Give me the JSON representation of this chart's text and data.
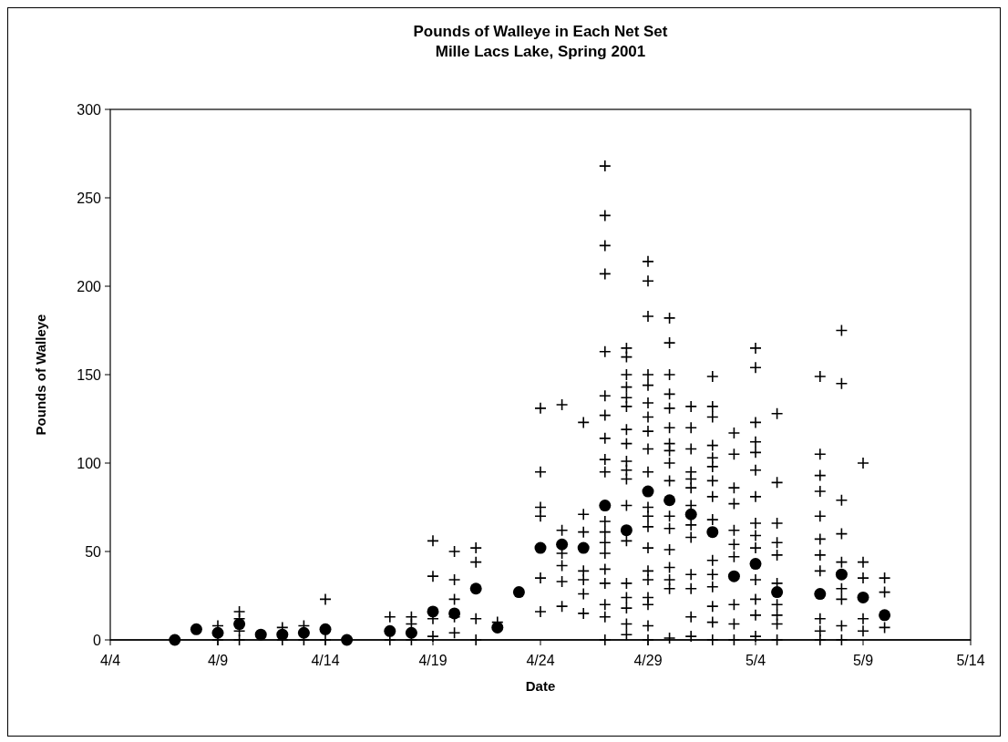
{
  "chart_data": {
    "type": "scatter",
    "title": "Pounds of Walleye in Each Net Set",
    "subtitle": "Mille Lacs Lake, Spring 2001",
    "xlabel": "Date",
    "ylabel": "Pounds of Walleye",
    "xlim": [
      "2001-04-04",
      "2001-05-14"
    ],
    "xticks": [
      {
        "value": "2001-04-04",
        "label": "4/4"
      },
      {
        "value": "2001-04-09",
        "label": "4/9"
      },
      {
        "value": "2001-04-14",
        "label": "4/14"
      },
      {
        "value": "2001-04-19",
        "label": "4/19"
      },
      {
        "value": "2001-04-24",
        "label": "4/24"
      },
      {
        "value": "2001-04-29",
        "label": "4/29"
      },
      {
        "value": "2001-05-04",
        "label": "5/4"
      },
      {
        "value": "2001-05-09",
        "label": "5/9"
      },
      {
        "value": "2001-05-14",
        "label": "5/14"
      }
    ],
    "ylim": [
      0,
      300
    ],
    "yticks": [
      0,
      50,
      100,
      150,
      200,
      250,
      300
    ],
    "grid": false,
    "series": [
      {
        "color": "#000000",
        "marker": "cross",
        "x": [
          "2001-04-09",
          "2001-04-09",
          "2001-04-10",
          "2001-04-10",
          "2001-04-10",
          "2001-04-10",
          "2001-04-12",
          "2001-04-12",
          "2001-04-13",
          "2001-04-13",
          "2001-04-14",
          "2001-04-14",
          "2001-04-17",
          "2001-04-17",
          "2001-04-18",
          "2001-04-18",
          "2001-04-18",
          "2001-04-19",
          "2001-04-19",
          "2001-04-19",
          "2001-04-19",
          "2001-04-20",
          "2001-04-20",
          "2001-04-20",
          "2001-04-20",
          "2001-04-20",
          "2001-04-21",
          "2001-04-21",
          "2001-04-21",
          "2001-04-21",
          "2001-04-22",
          "2001-04-24",
          "2001-04-24",
          "2001-04-24",
          "2001-04-24",
          "2001-04-24",
          "2001-04-24",
          "2001-04-25",
          "2001-04-25",
          "2001-04-25",
          "2001-04-25",
          "2001-04-25",
          "2001-04-25",
          "2001-04-26",
          "2001-04-26",
          "2001-04-26",
          "2001-04-26",
          "2001-04-26",
          "2001-04-26",
          "2001-04-26",
          "2001-04-27",
          "2001-04-27",
          "2001-04-27",
          "2001-04-27",
          "2001-04-27",
          "2001-04-27",
          "2001-04-27",
          "2001-04-27",
          "2001-04-27",
          "2001-04-27",
          "2001-04-27",
          "2001-04-27",
          "2001-04-27",
          "2001-04-27",
          "2001-04-27",
          "2001-04-27",
          "2001-04-27",
          "2001-04-27",
          "2001-04-27",
          "2001-04-28",
          "2001-04-28",
          "2001-04-28",
          "2001-04-28",
          "2001-04-28",
          "2001-04-28",
          "2001-04-28",
          "2001-04-28",
          "2001-04-28",
          "2001-04-28",
          "2001-04-28",
          "2001-04-28",
          "2001-04-28",
          "2001-04-28",
          "2001-04-28",
          "2001-04-28",
          "2001-04-28",
          "2001-04-28",
          "2001-04-29",
          "2001-04-29",
          "2001-04-29",
          "2001-04-29",
          "2001-04-29",
          "2001-04-29",
          "2001-04-29",
          "2001-04-29",
          "2001-04-29",
          "2001-04-29",
          "2001-04-29",
          "2001-04-29",
          "2001-04-29",
          "2001-04-29",
          "2001-04-29",
          "2001-04-29",
          "2001-04-29",
          "2001-04-29",
          "2001-04-29",
          "2001-04-29",
          "2001-04-30",
          "2001-04-30",
          "2001-04-30",
          "2001-04-30",
          "2001-04-30",
          "2001-04-30",
          "2001-04-30",
          "2001-04-30",
          "2001-04-30",
          "2001-04-30",
          "2001-04-30",
          "2001-04-30",
          "2001-04-30",
          "2001-04-30",
          "2001-04-30",
          "2001-04-30",
          "2001-04-30",
          "2001-05-01",
          "2001-05-01",
          "2001-05-01",
          "2001-05-01",
          "2001-05-01",
          "2001-05-01",
          "2001-05-01",
          "2001-05-01",
          "2001-05-01",
          "2001-05-01",
          "2001-05-01",
          "2001-05-01",
          "2001-05-01",
          "2001-05-02",
          "2001-05-02",
          "2001-05-02",
          "2001-05-02",
          "2001-05-02",
          "2001-05-02",
          "2001-05-02",
          "2001-05-02",
          "2001-05-02",
          "2001-05-02",
          "2001-05-02",
          "2001-05-02",
          "2001-05-02",
          "2001-05-02",
          "2001-05-02",
          "2001-05-03",
          "2001-05-03",
          "2001-05-03",
          "2001-05-03",
          "2001-05-03",
          "2001-05-03",
          "2001-05-03",
          "2001-05-03",
          "2001-05-03",
          "2001-05-03",
          "2001-05-04",
          "2001-05-04",
          "2001-05-04",
          "2001-05-04",
          "2001-05-04",
          "2001-05-04",
          "2001-05-04",
          "2001-05-04",
          "2001-05-04",
          "2001-05-04",
          "2001-05-04",
          "2001-05-04",
          "2001-05-04",
          "2001-05-04",
          "2001-05-05",
          "2001-05-05",
          "2001-05-05",
          "2001-05-05",
          "2001-05-05",
          "2001-05-05",
          "2001-05-05",
          "2001-05-05",
          "2001-05-05",
          "2001-05-05",
          "2001-05-07",
          "2001-05-07",
          "2001-05-07",
          "2001-05-07",
          "2001-05-07",
          "2001-05-07",
          "2001-05-07",
          "2001-05-07",
          "2001-05-07",
          "2001-05-07",
          "2001-05-07",
          "2001-05-08",
          "2001-05-08",
          "2001-05-08",
          "2001-05-08",
          "2001-05-08",
          "2001-05-08",
          "2001-05-08",
          "2001-05-08",
          "2001-05-08",
          "2001-05-09",
          "2001-05-09",
          "2001-05-09",
          "2001-05-09",
          "2001-05-09",
          "2001-05-10",
          "2001-05-10",
          "2001-05-10"
        ],
        "values": [
          8,
          0,
          16,
          12,
          5,
          0,
          7,
          0,
          8,
          0,
          23,
          0,
          13,
          0,
          13,
          9,
          0,
          56,
          36,
          12,
          2,
          50,
          34,
          23,
          13,
          4,
          52,
          44,
          12,
          0,
          10,
          131,
          95,
          75,
          70,
          35,
          16,
          133,
          62,
          49,
          42,
          33,
          19,
          123,
          71,
          61,
          39,
          34,
          26,
          15,
          268,
          240,
          223,
          207,
          163,
          138,
          127,
          114,
          102,
          95,
          67,
          61,
          55,
          49,
          40,
          32,
          20,
          13,
          0,
          165,
          160,
          150,
          143,
          137,
          132,
          119,
          111,
          101,
          96,
          91,
          76,
          56,
          32,
          24,
          18,
          9,
          3,
          214,
          203,
          183,
          150,
          144,
          134,
          126,
          118,
          108,
          95,
          75,
          70,
          64,
          52,
          39,
          34,
          24,
          20,
          8,
          0,
          182,
          168,
          150,
          139,
          131,
          120,
          111,
          107,
          100,
          90,
          70,
          63,
          51,
          41,
          34,
          29,
          1,
          132,
          120,
          108,
          95,
          91,
          86,
          76,
          65,
          58,
          37,
          29,
          13,
          2,
          149,
          132,
          126,
          110,
          103,
          98,
          90,
          81,
          68,
          45,
          37,
          30,
          19,
          10,
          0,
          117,
          105,
          86,
          77,
          62,
          54,
          47,
          20,
          9,
          0,
          165,
          154,
          123,
          112,
          106,
          96,
          81,
          66,
          59,
          52,
          34,
          23,
          14,
          2,
          128,
          89,
          66,
          55,
          48,
          32,
          20,
          14,
          9,
          0,
          149,
          105,
          93,
          84,
          70,
          57,
          48,
          39,
          12,
          5,
          0,
          175,
          145,
          79,
          60,
          44,
          29,
          23,
          8,
          0,
          100,
          44,
          35,
          12,
          5,
          35,
          27,
          7
        ]
      },
      {
        "color": "#000000",
        "marker": "circle",
        "x": [
          "2001-04-07",
          "2001-04-08",
          "2001-04-09",
          "2001-04-10",
          "2001-04-11",
          "2001-04-12",
          "2001-04-13",
          "2001-04-14",
          "2001-04-15",
          "2001-04-17",
          "2001-04-18",
          "2001-04-19",
          "2001-04-20",
          "2001-04-21",
          "2001-04-22",
          "2001-04-23",
          "2001-04-24",
          "2001-04-25",
          "2001-04-26",
          "2001-04-27",
          "2001-04-28",
          "2001-04-29",
          "2001-04-30",
          "2001-05-01",
          "2001-05-02",
          "2001-05-03",
          "2001-05-04",
          "2001-05-05",
          "2001-05-07",
          "2001-05-08",
          "2001-05-09",
          "2001-05-10"
        ],
        "values": [
          0,
          6,
          4,
          9,
          3,
          3,
          4,
          6,
          0,
          5,
          4,
          16,
          15,
          29,
          7,
          27,
          52,
          54,
          52,
          76,
          62,
          84,
          79,
          71,
          61,
          36,
          43,
          27,
          26,
          37,
          24,
          14
        ]
      }
    ]
  }
}
